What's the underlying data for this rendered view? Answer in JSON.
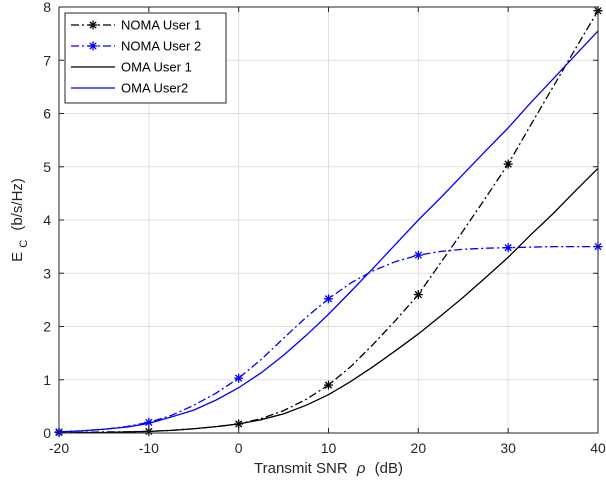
{
  "chart_data": {
    "type": "line",
    "xlabel": "Transmit SNR",
    "xlabel_symbol": "ρ",
    "xlabel_unit": "(dB)",
    "ylabel_main": "E",
    "ylabel_sub": "C",
    "ylabel_unit": "(b/s/Hz)",
    "xlim": [
      -20,
      40
    ],
    "ylim": [
      0,
      8
    ],
    "xticks": [
      -20,
      -10,
      0,
      10,
      20,
      30,
      40
    ],
    "yticks": [
      0,
      1,
      2,
      3,
      4,
      5,
      6,
      7,
      8
    ],
    "xtick_labels": [
      "-20",
      "-10",
      "0",
      "10",
      "20",
      "30",
      "40"
    ],
    "ytick_labels": [
      "0",
      "1",
      "2",
      "3",
      "4",
      "5",
      "6",
      "7",
      "8"
    ],
    "grid": true,
    "legend_position": "top-left",
    "series": [
      {
        "name": "NOMA User 1",
        "color": "#000000",
        "line_style": "dash-dot",
        "marker": "asterisk",
        "x": [
          -20,
          -17.5,
          -15,
          -12.5,
          -10,
          -7.5,
          -5,
          -2.5,
          0,
          2.5,
          5,
          7.5,
          10,
          12.5,
          15,
          17.5,
          20,
          22.5,
          25,
          27.5,
          30,
          32.5,
          35,
          37.5,
          40
        ],
        "y": [
          0.01,
          0.01,
          0.02,
          0.02,
          0.03,
          0.05,
          0.08,
          0.12,
          0.17,
          0.27,
          0.42,
          0.63,
          0.9,
          1.25,
          1.67,
          2.12,
          2.6,
          3.2,
          3.8,
          4.42,
          5.05,
          5.78,
          6.5,
          7.22,
          7.93
        ],
        "marker_x": [
          -20,
          -10,
          0,
          10,
          20,
          30,
          40
        ],
        "marker_y": [
          0.01,
          0.03,
          0.17,
          0.9,
          2.6,
          5.05,
          7.93
        ]
      },
      {
        "name": "NOMA User 2",
        "color": "#0000ff",
        "line_style": "dash-dot",
        "marker": "asterisk",
        "x": [
          -20,
          -17.5,
          -15,
          -12.5,
          -10,
          -7.5,
          -5,
          -2.5,
          0,
          2.5,
          5,
          7.5,
          10,
          12.5,
          15,
          17.5,
          20,
          22.5,
          25,
          27.5,
          30,
          32.5,
          35,
          37.5,
          40
        ],
        "y": [
          0.02,
          0.04,
          0.07,
          0.12,
          0.2,
          0.33,
          0.52,
          0.75,
          1.03,
          1.38,
          1.78,
          2.17,
          2.52,
          2.82,
          3.05,
          3.22,
          3.34,
          3.41,
          3.45,
          3.47,
          3.48,
          3.49,
          3.5,
          3.5,
          3.5
        ],
        "marker_x": [
          -20,
          -10,
          0,
          10,
          20,
          30,
          40
        ],
        "marker_y": [
          0.02,
          0.2,
          1.03,
          2.52,
          3.34,
          3.48,
          3.5
        ]
      },
      {
        "name": "OMA User 1",
        "color": "#000000",
        "line_style": "solid",
        "marker": "none",
        "x": [
          -20,
          -17.5,
          -15,
          -12.5,
          -10,
          -7.5,
          -5,
          -2.5,
          0,
          2.5,
          5,
          7.5,
          10,
          12.5,
          15,
          17.5,
          20,
          22.5,
          25,
          27.5,
          30,
          32.5,
          35,
          37.5,
          40
        ],
        "y": [
          0.0,
          0.01,
          0.01,
          0.02,
          0.03,
          0.05,
          0.08,
          0.12,
          0.17,
          0.25,
          0.36,
          0.52,
          0.72,
          0.97,
          1.25,
          1.55,
          1.86,
          2.2,
          2.55,
          2.92,
          3.3,
          3.72,
          4.12,
          4.55,
          4.97
        ]
      },
      {
        "name": "OMA User2",
        "color": "#0000ff",
        "line_style": "solid",
        "marker": "none",
        "x": [
          -20,
          -17.5,
          -15,
          -12.5,
          -10,
          -7.5,
          -5,
          -2.5,
          0,
          2.5,
          5,
          7.5,
          10,
          12.5,
          15,
          17.5,
          20,
          22.5,
          25,
          27.5,
          30,
          32.5,
          35,
          37.5,
          40
        ],
        "y": [
          0.02,
          0.04,
          0.07,
          0.11,
          0.18,
          0.3,
          0.43,
          0.62,
          0.85,
          1.13,
          1.46,
          1.83,
          2.23,
          2.66,
          3.1,
          3.55,
          4.0,
          4.42,
          4.86,
          5.3,
          5.73,
          6.2,
          6.65,
          7.1,
          7.55
        ]
      }
    ]
  }
}
